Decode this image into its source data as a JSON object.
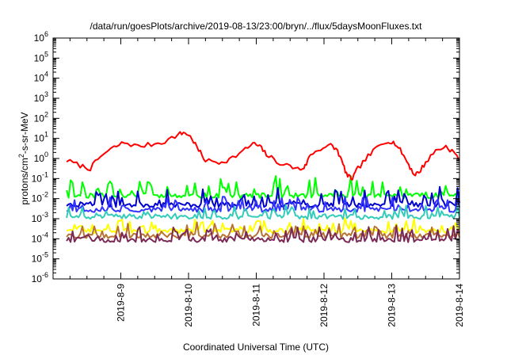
{
  "chart_data": {
    "type": "line",
    "title": "/data/run/goesPlots/archive/2019-08-13/23:00/bryn/../flux/5daysMoonFluxes.txt",
    "xlabel": "Coordinated Universal Time (UTC)",
    "ylabel_main": "protons/cm",
    "ylabel_sup": "2",
    "ylabel_tail": "-s-sr-MeV",
    "y_scale": "log",
    "ylim_exp": [
      -6,
      6
    ],
    "y_ticks": [
      {
        "exp": -6,
        "base": "10",
        "sup": "-6"
      },
      {
        "exp": -5,
        "base": "10",
        "sup": "-5"
      },
      {
        "exp": -4,
        "base": "10",
        "sup": "-4"
      },
      {
        "exp": -3,
        "base": "10",
        "sup": "-3"
      },
      {
        "exp": -2,
        "base": "10",
        "sup": "-2"
      },
      {
        "exp": -1,
        "base": "10",
        "sup": "-1"
      },
      {
        "exp": 0,
        "base": "10",
        "sup": "0"
      },
      {
        "exp": 1,
        "base": "10",
        "sup": "1"
      },
      {
        "exp": 2,
        "base": "10",
        "sup": "2"
      },
      {
        "exp": 3,
        "base": "10",
        "sup": "3"
      },
      {
        "exp": 4,
        "base": "10",
        "sup": "4"
      },
      {
        "exp": 5,
        "base": "10",
        "sup": "5"
      },
      {
        "exp": 6,
        "base": "10",
        "sup": "6"
      }
    ],
    "x_range_days": [
      "2019-08-08 00:00",
      "2019-08-14 00:00"
    ],
    "x_ticks": [
      "2019-8-9",
      "2019-8-10",
      "2019-8-11",
      "2019-8-12",
      "2019-8-13",
      "2019-8-14"
    ],
    "x_tick_days": [
      1,
      2,
      3,
      4,
      5,
      6
    ],
    "x_start_day": 0.2,
    "grid": false,
    "legend": "none",
    "series": [
      {
        "color": "#ff0000",
        "width": 2,
        "jitter": 0.12,
        "points": [
          [
            0.2,
            -0.1
          ],
          [
            0.4,
            -0.35
          ],
          [
            0.55,
            -0.5
          ],
          [
            0.7,
            0.1
          ],
          [
            0.9,
            0.55
          ],
          [
            1.05,
            0.8
          ],
          [
            1.25,
            0.6
          ],
          [
            1.45,
            0.7
          ],
          [
            1.65,
            0.85
          ],
          [
            1.85,
            1.2
          ],
          [
            1.95,
            1.3
          ],
          [
            2.05,
            1.0
          ],
          [
            2.15,
            0.4
          ],
          [
            2.25,
            -0.1
          ],
          [
            2.45,
            -0.2
          ],
          [
            2.6,
            -0.05
          ],
          [
            2.8,
            0.35
          ],
          [
            2.95,
            0.75
          ],
          [
            3.05,
            0.6
          ],
          [
            3.15,
            0.2
          ],
          [
            3.3,
            -0.15
          ],
          [
            3.5,
            -0.4
          ],
          [
            3.65,
            -0.55
          ],
          [
            3.72,
            -0.4
          ],
          [
            3.8,
            0.2
          ],
          [
            3.95,
            0.5
          ],
          [
            4.1,
            0.65
          ],
          [
            4.2,
            0.4
          ],
          [
            4.28,
            -0.3
          ],
          [
            4.35,
            -0.9
          ],
          [
            4.42,
            -1.0
          ],
          [
            4.5,
            -0.5
          ],
          [
            4.65,
            0.1
          ],
          [
            4.8,
            0.6
          ],
          [
            4.95,
            0.9
          ],
          [
            5.05,
            0.75
          ],
          [
            5.15,
            0.3
          ],
          [
            5.25,
            -0.3
          ],
          [
            5.33,
            -0.8
          ],
          [
            5.4,
            -0.7
          ],
          [
            5.5,
            -0.2
          ],
          [
            5.65,
            0.4
          ],
          [
            5.8,
            0.6
          ],
          [
            5.92,
            0.3
          ],
          [
            6.0,
            -0.1
          ]
        ]
      },
      {
        "color": "#00ff00",
        "width": 2,
        "base": -1.85,
        "spike": 0.95,
        "n": 200,
        "seed": 11
      },
      {
        "color": "#0000cc",
        "width": 2,
        "base": -2.3,
        "spike": 0.8,
        "n": 200,
        "seed": 23
      },
      {
        "color": "#3333ff",
        "width": 2,
        "base": -2.55,
        "spike": 0.6,
        "n": 200,
        "seed": 37
      },
      {
        "color": "#33ccbb",
        "width": 2,
        "base": -2.9,
        "spike": 0.5,
        "n": 200,
        "seed": 41
      },
      {
        "color": "#ffff00",
        "width": 2,
        "base": -3.6,
        "spike": 0.55,
        "n": 200,
        "seed": 53
      },
      {
        "color": "#b87333",
        "width": 2,
        "base": -3.85,
        "spike": 0.6,
        "n": 200,
        "seed": 67
      },
      {
        "color": "#7a2a55",
        "width": 2,
        "base": -4.05,
        "spike": 0.65,
        "n": 200,
        "seed": 79
      }
    ]
  }
}
